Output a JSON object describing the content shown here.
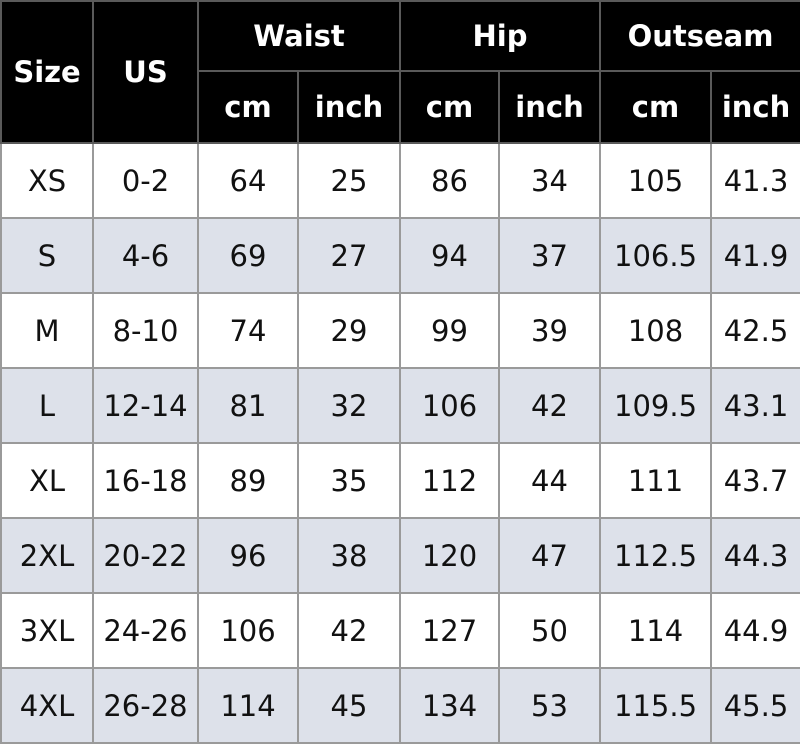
{
  "headers": {
    "size": "Size",
    "us": "US",
    "groups": [
      "Waist",
      "Hip",
      "Outseam"
    ],
    "sub": [
      "cm",
      "inch",
      "cm",
      "inch",
      "cm",
      "inch"
    ]
  },
  "colors": {
    "header_bg": "#000000",
    "header_text": "#ffffff",
    "alt_row": "#dde1ea"
  },
  "rows": [
    [
      "XS",
      "0-2",
      "64",
      "25",
      "86",
      "34",
      "105",
      "41.3"
    ],
    [
      "S",
      "4-6",
      "69",
      "27",
      "94",
      "37",
      "106.5",
      "41.9"
    ],
    [
      "M",
      "8-10",
      "74",
      "29",
      "99",
      "39",
      "108",
      "42.5"
    ],
    [
      "L",
      "12-14",
      "81",
      "32",
      "106",
      "42",
      "109.5",
      "43.1"
    ],
    [
      "XL",
      "16-18",
      "89",
      "35",
      "112",
      "44",
      "111",
      "43.7"
    ],
    [
      "2XL",
      "20-22",
      "96",
      "38",
      "120",
      "47",
      "112.5",
      "44.3"
    ],
    [
      "3XL",
      "24-26",
      "106",
      "42",
      "127",
      "50",
      "114",
      "44.9"
    ],
    [
      "4XL",
      "26-28",
      "114",
      "45",
      "134",
      "53",
      "115.5",
      "45.5"
    ]
  ]
}
